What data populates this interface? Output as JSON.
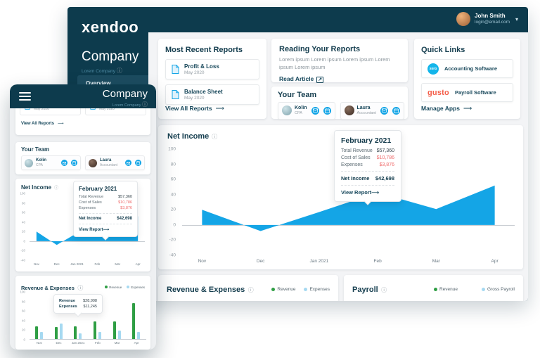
{
  "brand": {
    "logo_text": "xendoo"
  },
  "icons": {
    "arrow_right": "⟶",
    "external_link": "↗",
    "info": "ⓘ",
    "chevron_down": "▾"
  },
  "user": {
    "name": "John Smith",
    "email": "login@email.com"
  },
  "company": {
    "title": "Company",
    "subtitle": "Lorem Company"
  },
  "nav": {
    "overview": "Overview"
  },
  "reports": {
    "title": "Most Recent Reports",
    "items": [
      {
        "name": "Profit & Loss",
        "date": "May 2020"
      },
      {
        "name": "Balance Sheet",
        "date": "May 2020"
      }
    ],
    "view_all": "View All Reports"
  },
  "reading": {
    "title": "Reading Your Reports",
    "body": "Lorem ipsum Lorem ipsum Lorem ipsum Lorem ipsum Lorem ipsum",
    "link": "Read Article"
  },
  "team": {
    "title": "Your Team",
    "members": [
      {
        "name": "Kolin",
        "role": "CPA"
      },
      {
        "name": "Laura",
        "role": "Accountant"
      }
    ]
  },
  "quick_links": {
    "title": "Quick Links",
    "items": [
      {
        "logo": "xero",
        "label": "Accounting Software"
      },
      {
        "logo": "gusto",
        "label": "Payroll Software"
      }
    ],
    "manage": "Manage Apps"
  },
  "net_income": {
    "title": "Net Income"
  },
  "tooltip": {
    "title": "February 2021",
    "rows": [
      {
        "label": "Total Revenue",
        "value": "$57,360",
        "negative": false
      },
      {
        "label": "Cost of Sales",
        "value": "$10,786",
        "negative": true
      },
      {
        "label": "Expenses",
        "value": "$3,876",
        "negative": true
      }
    ],
    "net_label": "Net Income",
    "net_value": "$42,698",
    "link": "View Report"
  },
  "rev_exp": {
    "title": "Revenue & Expenses",
    "legend": [
      "Revenue",
      "Expenses"
    ],
    "tooltip": {
      "revenue_label": "Revenue",
      "revenue_value": "$28,998",
      "expenses_label": "Expenses",
      "expenses_value": "$11,245"
    }
  },
  "payroll": {
    "title": "Payroll",
    "legend": [
      "Revenue",
      "Gross Payroll"
    ]
  },
  "chart_data": [
    {
      "id": "net_income",
      "type": "area",
      "title": "Net Income",
      "categories": [
        "Nov",
        "Dec",
        "Jan 2021",
        "Feb",
        "Mar",
        "Apr"
      ],
      "values": [
        20,
        -8,
        17,
        42.7,
        21,
        52
      ],
      "ylim": [
        -40,
        100
      ],
      "yticks": [
        100,
        80,
        60,
        40,
        20,
        0,
        -20,
        -40
      ],
      "marker": {
        "index": 3,
        "value": 42.7,
        "label": "February 2021"
      },
      "color": "#14a5e6",
      "grid": false,
      "annotation": "Tooltip at Feb: Total Revenue $57,360, Cost of Sales $10,786, Expenses $3,876, Net Income $42,698"
    },
    {
      "id": "revenue_expenses",
      "type": "bar",
      "title": "Revenue & Expenses",
      "categories": [
        "Nov",
        "Dec",
        "Jan 2021",
        "Feb",
        "Mar",
        "Apr"
      ],
      "series": [
        {
          "name": "Revenue",
          "color": "#2f9e44",
          "values": [
            26,
            25,
            27,
            37,
            37,
            75
          ]
        },
        {
          "name": "Expenses",
          "color": "#a6d9f1",
          "values": [
            14,
            32,
            12,
            14,
            18,
            15
          ]
        }
      ],
      "ylim": [
        0,
        100
      ],
      "yticks": [
        100,
        80,
        60,
        40,
        20,
        0
      ],
      "legend_position": "top-right",
      "annotation": "Tooltip: Revenue $28,998, Expenses $11,245"
    }
  ]
}
